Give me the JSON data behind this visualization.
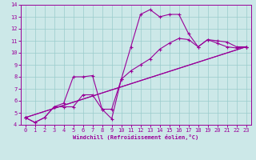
{
  "xlabel": "Windchill (Refroidissement éolien,°C)",
  "bg_color": "#cce8e8",
  "line_color": "#990099",
  "grid_color": "#99cccc",
  "xlim": [
    -0.5,
    23.5
  ],
  "ylim": [
    4,
    14
  ],
  "xticks": [
    0,
    1,
    2,
    3,
    4,
    5,
    6,
    7,
    8,
    9,
    10,
    11,
    12,
    13,
    14,
    15,
    16,
    17,
    18,
    19,
    20,
    21,
    22,
    23
  ],
  "yticks": [
    4,
    5,
    6,
    7,
    8,
    9,
    10,
    11,
    12,
    13,
    14
  ],
  "series": [
    {
      "x": [
        0,
        1,
        2,
        3,
        4,
        5,
        6,
        7,
        8,
        9,
        10,
        11,
        12,
        13,
        14,
        15,
        16,
        17,
        18,
        19,
        20,
        21,
        22,
        23
      ],
      "y": [
        4.6,
        4.2,
        4.6,
        5.5,
        5.8,
        8.0,
        8.0,
        8.1,
        5.3,
        4.5,
        7.8,
        10.5,
        13.2,
        13.6,
        13.0,
        13.2,
        13.2,
        11.6,
        10.5,
        11.1,
        11.0,
        10.9,
        10.5,
        10.5
      ]
    },
    {
      "x": [
        0,
        1,
        2,
        3,
        4,
        5,
        6,
        7,
        8,
        9,
        10,
        11,
        12,
        13,
        14,
        15,
        16,
        17,
        18,
        19,
        20,
        21,
        22,
        23
      ],
      "y": [
        4.6,
        4.2,
        4.6,
        5.5,
        5.5,
        5.5,
        6.5,
        6.5,
        5.3,
        5.3,
        7.8,
        8.5,
        9.0,
        9.5,
        10.3,
        10.8,
        11.2,
        11.1,
        10.5,
        11.1,
        10.8,
        10.5,
        10.4,
        10.5
      ]
    },
    {
      "x": [
        0,
        23
      ],
      "y": [
        4.6,
        10.5
      ]
    },
    {
      "x": [
        0,
        23
      ],
      "y": [
        4.6,
        10.5
      ]
    }
  ]
}
